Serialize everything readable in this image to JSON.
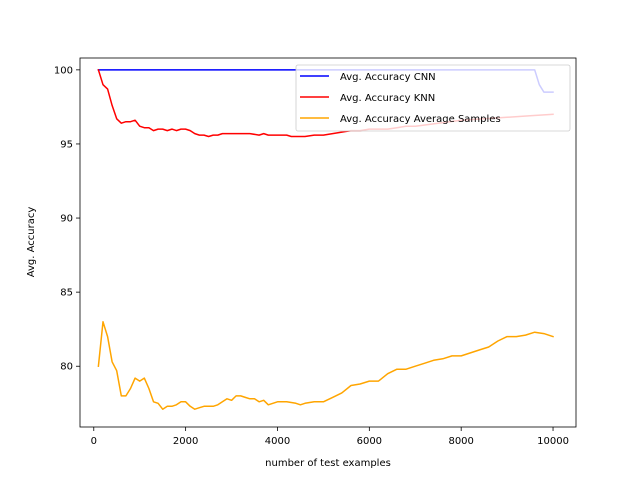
{
  "chart_data": {
    "type": "line",
    "title": "",
    "xlabel": "number of test examples",
    "ylabel": "Avg. Accuracy",
    "xlim": [
      -300,
      10500
    ],
    "ylim": [
      75.9,
      100.8
    ],
    "x_ticks": [
      0,
      2000,
      4000,
      6000,
      8000,
      10000
    ],
    "y_ticks": [
      80,
      85,
      90,
      95,
      100
    ],
    "x_tick_labels": [
      "0",
      "2000",
      "4000",
      "6000",
      "8000",
      "10000"
    ],
    "y_tick_labels": [
      "80",
      "85",
      "90",
      "95",
      "100"
    ],
    "grid": false,
    "legend_position": "top-right",
    "series": [
      {
        "name": "Avg. Accuracy CNN",
        "color": "#0000ff",
        "points": [
          [
            100,
            100
          ],
          [
            9600,
            100
          ],
          [
            9700,
            99
          ],
          [
            9800,
            98.5
          ],
          [
            10000,
            98.5
          ]
        ]
      },
      {
        "name": "Avg. Accuracy KNN",
        "color": "#ff0000",
        "points": [
          [
            100,
            100
          ],
          [
            200,
            99
          ],
          [
            300,
            98.7
          ],
          [
            400,
            97.6
          ],
          [
            500,
            96.7
          ],
          [
            600,
            96.4
          ],
          [
            700,
            96.5
          ],
          [
            800,
            96.5
          ],
          [
            900,
            96.6
          ],
          [
            1000,
            96.2
          ],
          [
            1100,
            96.1
          ],
          [
            1200,
            96.1
          ],
          [
            1300,
            95.9
          ],
          [
            1400,
            96.0
          ],
          [
            1500,
            96.0
          ],
          [
            1600,
            95.9
          ],
          [
            1700,
            96.0
          ],
          [
            1800,
            95.9
          ],
          [
            1900,
            96.0
          ],
          [
            2000,
            96.0
          ],
          [
            2100,
            95.9
          ],
          [
            2200,
            95.7
          ],
          [
            2300,
            95.6
          ],
          [
            2400,
            95.6
          ],
          [
            2500,
            95.5
          ],
          [
            2600,
            95.6
          ],
          [
            2700,
            95.6
          ],
          [
            2800,
            95.7
          ],
          [
            2900,
            95.7
          ],
          [
            3000,
            95.7
          ],
          [
            3200,
            95.7
          ],
          [
            3400,
            95.7
          ],
          [
            3600,
            95.6
          ],
          [
            3700,
            95.7
          ],
          [
            3800,
            95.6
          ],
          [
            4000,
            95.6
          ],
          [
            4200,
            95.6
          ],
          [
            4300,
            95.5
          ],
          [
            4600,
            95.5
          ],
          [
            4800,
            95.6
          ],
          [
            5000,
            95.6
          ],
          [
            5200,
            95.7
          ],
          [
            5400,
            95.8
          ],
          [
            5600,
            95.9
          ],
          [
            5800,
            95.9
          ],
          [
            6000,
            96.0
          ],
          [
            6200,
            96.0
          ],
          [
            6400,
            96.0
          ],
          [
            6600,
            96.1
          ],
          [
            6800,
            96.2
          ],
          [
            7000,
            96.2
          ],
          [
            7500,
            96.4
          ],
          [
            8000,
            96.6
          ],
          [
            8500,
            96.7
          ],
          [
            9000,
            96.8
          ],
          [
            9500,
            96.9
          ],
          [
            10000,
            97.0
          ]
        ]
      },
      {
        "name": "Avg. Accuracy Average Samples",
        "color": "#ffa500",
        "points": [
          [
            100,
            80
          ],
          [
            200,
            83
          ],
          [
            300,
            82
          ],
          [
            400,
            80.3
          ],
          [
            500,
            79.7
          ],
          [
            600,
            78
          ],
          [
            700,
            78
          ],
          [
            800,
            78.5
          ],
          [
            900,
            79.2
          ],
          [
            1000,
            79.0
          ],
          [
            1100,
            79.2
          ],
          [
            1200,
            78.5
          ],
          [
            1300,
            77.6
          ],
          [
            1400,
            77.5
          ],
          [
            1500,
            77.1
          ],
          [
            1600,
            77.3
          ],
          [
            1700,
            77.3
          ],
          [
            1800,
            77.4
          ],
          [
            1900,
            77.6
          ],
          [
            2000,
            77.6
          ],
          [
            2100,
            77.3
          ],
          [
            2200,
            77.1
          ],
          [
            2300,
            77.2
          ],
          [
            2400,
            77.3
          ],
          [
            2500,
            77.3
          ],
          [
            2600,
            77.3
          ],
          [
            2700,
            77.4
          ],
          [
            2800,
            77.6
          ],
          [
            2900,
            77.8
          ],
          [
            3000,
            77.7
          ],
          [
            3100,
            78.0
          ],
          [
            3200,
            78.0
          ],
          [
            3300,
            77.9
          ],
          [
            3400,
            77.8
          ],
          [
            3500,
            77.8
          ],
          [
            3600,
            77.6
          ],
          [
            3700,
            77.7
          ],
          [
            3800,
            77.4
          ],
          [
            3900,
            77.5
          ],
          [
            4000,
            77.6
          ],
          [
            4200,
            77.6
          ],
          [
            4400,
            77.5
          ],
          [
            4500,
            77.4
          ],
          [
            4600,
            77.5
          ],
          [
            4800,
            77.6
          ],
          [
            5000,
            77.6
          ],
          [
            5200,
            77.9
          ],
          [
            5400,
            78.2
          ],
          [
            5600,
            78.7
          ],
          [
            5800,
            78.8
          ],
          [
            6000,
            79.0
          ],
          [
            6200,
            79.0
          ],
          [
            6400,
            79.5
          ],
          [
            6600,
            79.8
          ],
          [
            6800,
            79.8
          ],
          [
            7000,
            80.0
          ],
          [
            7200,
            80.2
          ],
          [
            7400,
            80.4
          ],
          [
            7600,
            80.5
          ],
          [
            7800,
            80.7
          ],
          [
            8000,
            80.7
          ],
          [
            8200,
            80.9
          ],
          [
            8400,
            81.1
          ],
          [
            8600,
            81.3
          ],
          [
            8800,
            81.7
          ],
          [
            9000,
            82.0
          ],
          [
            9200,
            82.0
          ],
          [
            9400,
            82.1
          ],
          [
            9600,
            82.3
          ],
          [
            9800,
            82.2
          ],
          [
            10000,
            82.0
          ]
        ]
      }
    ]
  }
}
